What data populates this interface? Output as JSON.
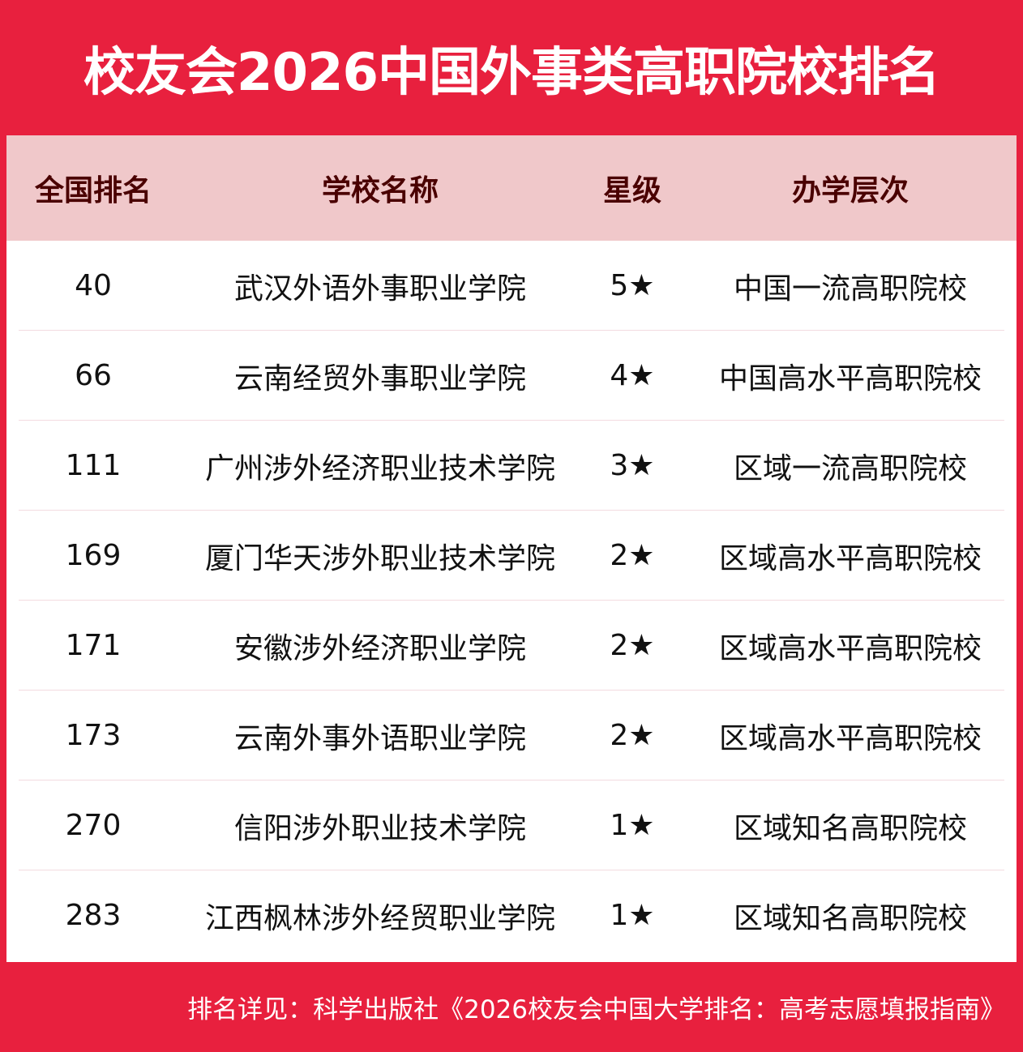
{
  "title": "校友会2026中国外事类高职院校排名",
  "colors": {
    "brand_red": "#e8203e",
    "header_bg": "#f0c8ca",
    "header_text": "#4a0000"
  },
  "table": {
    "headers": [
      "全国排名",
      "学校名称",
      "星级",
      "办学层次"
    ],
    "rows": [
      {
        "rank": "40",
        "name": "武汉外语外事职业学院",
        "stars": "5★",
        "level": "中国一流高职院校"
      },
      {
        "rank": "66",
        "name": "云南经贸外事职业学院",
        "stars": "4★",
        "level": "中国高水平高职院校"
      },
      {
        "rank": "111",
        "name": "广州涉外经济职业技术学院",
        "stars": "3★",
        "level": "区域一流高职院校"
      },
      {
        "rank": "169",
        "name": "厦门华天涉外职业技术学院",
        "stars": "2★",
        "level": "区域高水平高职院校"
      },
      {
        "rank": "171",
        "name": "安徽涉外经济职业学院",
        "stars": "2★",
        "level": "区域高水平高职院校"
      },
      {
        "rank": "173",
        "name": "云南外事外语职业学院",
        "stars": "2★",
        "level": "区域高水平高职院校"
      },
      {
        "rank": "270",
        "name": "信阳涉外职业技术学院",
        "stars": "1★",
        "level": "区域知名高职院校"
      },
      {
        "rank": "283",
        "name": "江西枫林涉外经贸职业学院",
        "stars": "1★",
        "level": "区域知名高职院校"
      }
    ]
  },
  "footer": "排名详见：科学出版社《2026校友会中国大学排名：高考志愿填报指南》"
}
